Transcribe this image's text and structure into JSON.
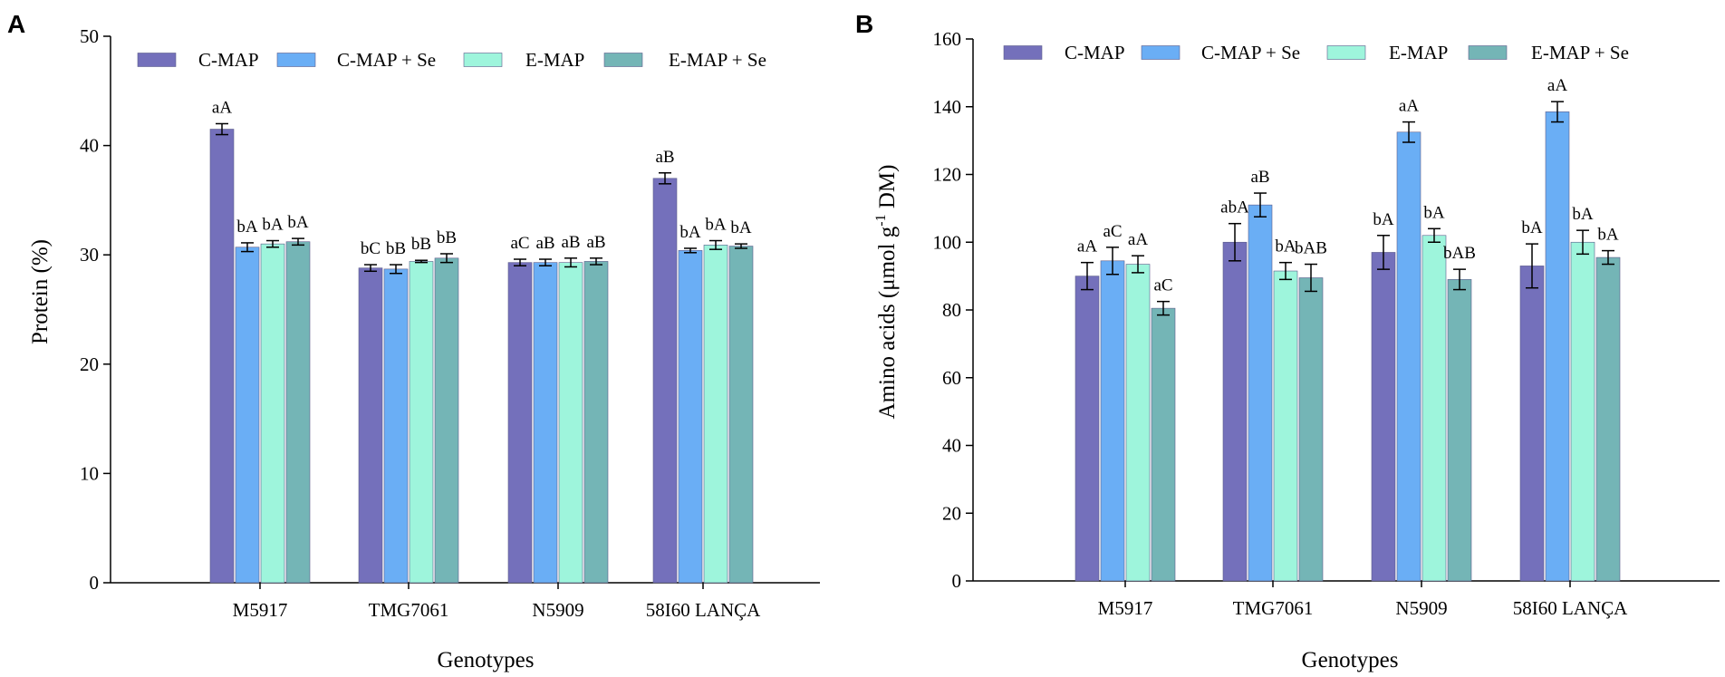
{
  "chart_data": [
    {
      "type": "bar",
      "panel": "A",
      "ylabel": "Protein (%)",
      "xlabel": "Genotypes",
      "ylim": [
        0,
        50
      ],
      "yticks": [
        "0",
        "10",
        "20",
        "30",
        "40",
        "50"
      ],
      "categories": [
        "M5917",
        "TMG7061",
        "N5909",
        "58I60 LANÇA"
      ],
      "grid": false,
      "legend_position": "top",
      "series": [
        {
          "name": "C-MAP",
          "color": "#7470bb",
          "values": [
            41.5,
            28.8,
            29.3,
            37.0
          ],
          "errors": [
            0.5,
            0.3,
            0.3,
            0.5
          ],
          "letters": [
            "aA",
            "bC",
            "aC",
            "aB"
          ]
        },
        {
          "name": "C-MAP + Se",
          "color": "#6aaef5",
          "values": [
            30.7,
            28.7,
            29.3,
            30.4
          ],
          "errors": [
            0.4,
            0.4,
            0.3,
            0.2
          ],
          "letters": [
            "bA",
            "bB",
            "aB",
            "bA"
          ]
        },
        {
          "name": "E-MAP",
          "color": "#9ef5dc",
          "values": [
            31.0,
            29.4,
            29.3,
            30.9
          ],
          "errors": [
            0.3,
            0.1,
            0.4,
            0.4
          ],
          "letters": [
            "bA",
            "bB",
            "aB",
            "bA"
          ]
        },
        {
          "name": "E-MAP + Se",
          "color": "#74b5b6",
          "values": [
            31.2,
            29.7,
            29.4,
            30.8
          ],
          "errors": [
            0.3,
            0.4,
            0.3,
            0.2
          ],
          "letters": [
            "bA",
            "bB",
            "aB",
            "bA"
          ]
        }
      ]
    },
    {
      "type": "bar",
      "panel": "B",
      "ylabel": "Amino acids (μmol g",
      "ylabel_sup": "-1",
      "ylabel_end": " DM)",
      "xlabel": "Genotypes",
      "ylim": [
        0,
        160
      ],
      "yticks": [
        "0",
        "20",
        "40",
        "60",
        "80",
        "100",
        "120",
        "140",
        "160"
      ],
      "categories": [
        "M5917",
        "TMG7061",
        "N5909",
        "58I60 LANÇA"
      ],
      "grid": false,
      "legend_position": "top",
      "series": [
        {
          "name": "C-MAP",
          "color": "#7470bb",
          "values": [
            90,
            100,
            97,
            93
          ],
          "errors": [
            4,
            5.5,
            5,
            6.5
          ],
          "letters": [
            "aA",
            "abA",
            "bA",
            "bA"
          ]
        },
        {
          "name": "C-MAP + Se",
          "color": "#6aaef5",
          "values": [
            94.5,
            111,
            132.5,
            138.5
          ],
          "errors": [
            4,
            3.5,
            3,
            3
          ],
          "letters": [
            "aC",
            "aB",
            "aA",
            "aA"
          ]
        },
        {
          "name": "E-MAP",
          "color": "#9ef5dc",
          "values": [
            93.5,
            91.5,
            102,
            100
          ],
          "errors": [
            2.5,
            2.5,
            2,
            3.5
          ],
          "letters": [
            "aA",
            "bA",
            "bA",
            "bA"
          ]
        },
        {
          "name": "E-MAP + Se",
          "color": "#74b5b6",
          "values": [
            80.5,
            89.5,
            89,
            95.5
          ],
          "errors": [
            2,
            4,
            3,
            2
          ],
          "letters": [
            "aC",
            "bAB",
            "bAB",
            "bA"
          ]
        }
      ]
    }
  ]
}
